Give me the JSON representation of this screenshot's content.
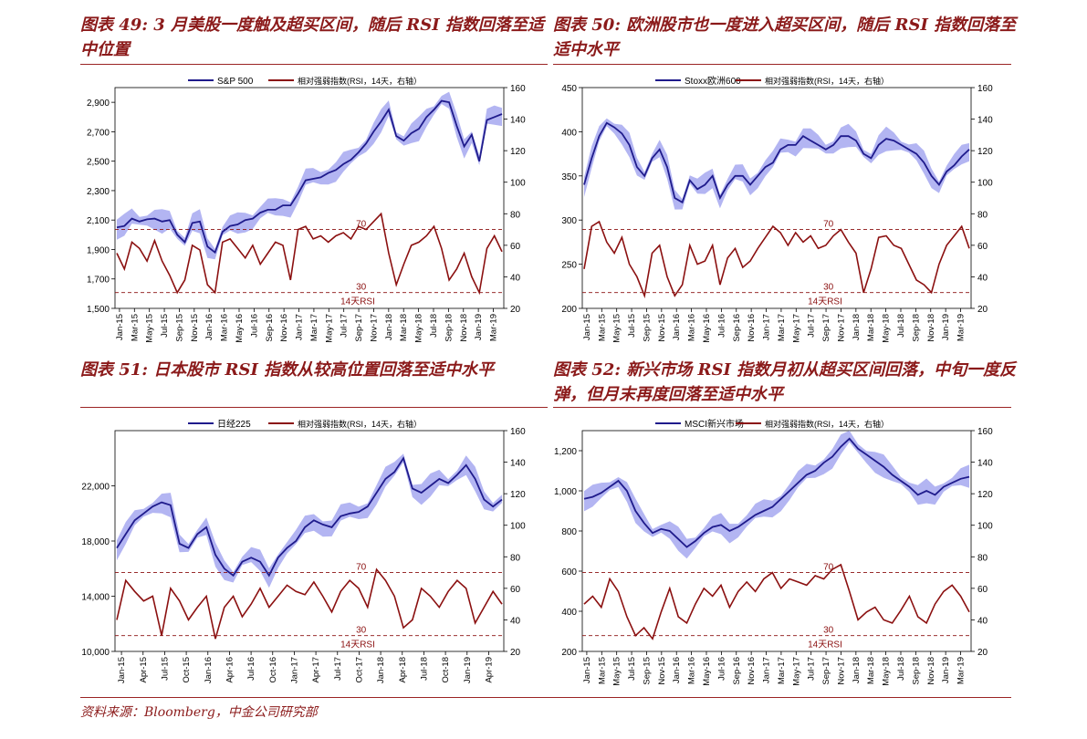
{
  "footer": {
    "source": "资料来源：Bloomberg，中金公司研究部"
  },
  "colors": {
    "index": "#1F1B8C",
    "rsi": "#8B1010",
    "band": "#B3B5F2",
    "accent": "#8B1A1A"
  },
  "charts": [
    {
      "title": "图表 49: 3 月美股一度触及超买区间，随后 RSI 指数回落至适中位置",
      "legend": {
        "index_label": "S&P 500",
        "rsi_label": "相对强弱指数(RSI，14天，右轴）"
      },
      "ref_label_high": "70",
      "ref_label_low": "30",
      "rsi_label": "14天RSI"
    },
    {
      "title": "图表 50: 欧洲股市也一度进入超买区间，随后 RSI 指数回落至适中水平",
      "legend": {
        "index_label": "Stoxx欧洲600",
        "rsi_label": "相对强弱指数(RSI，14天，右轴）"
      },
      "ref_label_high": "70",
      "ref_label_low": "30",
      "rsi_label": "14天RSI"
    },
    {
      "title": "图表 51: 日本股市 RSI 指数从较高位置回落至适中水平",
      "legend": {
        "index_label": "日经225",
        "rsi_label": "相对强弱指数(RSI，14天，右轴）"
      },
      "ref_label_high": "70",
      "ref_label_low": "30",
      "rsi_label": "14天RSI"
    },
    {
      "title": "图表 52: 新兴市场 RSI 指数月初从超买区间回落，中旬一度反弹，但月末再度回落至适中水平",
      "legend": {
        "index_label": "MSCI新兴市场",
        "rsi_label": "相对强弱指数(RSI，14天，右轴）"
      },
      "ref_label_high": "70",
      "ref_label_low": "30",
      "rsi_label": "14天RSI"
    }
  ],
  "chart_data": [
    {
      "type": "line",
      "x_ticks": [
        "Jan-15",
        "Mar-15",
        "May-15",
        "Jul-15",
        "Sep-15",
        "Nov-15",
        "Jan-16",
        "Mar-16",
        "May-16",
        "Jul-16",
        "Sep-16",
        "Nov-16",
        "Jan-17",
        "Mar-17",
        "May-17",
        "Jul-17",
        "Sep-17",
        "Nov-17",
        "Jan-18",
        "Mar-18",
        "May-18",
        "Jul-18",
        "Sep-18",
        "Nov-18",
        "Jan-19",
        "Mar-19"
      ],
      "y_left_ticks": [
        "1,500",
        "1,700",
        "1,900",
        "2,100",
        "2,300",
        "2,500",
        "2,700",
        "2,900"
      ],
      "y_left_range": [
        1500,
        3000
      ],
      "y_right_ticks": [
        "20",
        "40",
        "60",
        "80",
        "100",
        "120",
        "140",
        "160"
      ],
      "y_right_range": [
        20,
        160
      ],
      "rsi_ref_lines": [
        70,
        30
      ],
      "series": [
        {
          "name": "S&P 500",
          "axis": "left",
          "values": [
            2050,
            2060,
            2110,
            2090,
            2105,
            2110,
            2090,
            2100,
            2000,
            1950,
            2080,
            2090,
            1920,
            1880,
            2020,
            2060,
            2070,
            2100,
            2110,
            2150,
            2170,
            2170,
            2200,
            2200,
            2280,
            2370,
            2380,
            2390,
            2420,
            2440,
            2480,
            2510,
            2560,
            2620,
            2700,
            2770,
            2850,
            2670,
            2640,
            2690,
            2720,
            2800,
            2850,
            2910,
            2900,
            2740,
            2600,
            2680,
            2500,
            2780,
            2800,
            2820
          ]
        },
        {
          "name": "相对强弱指数(RSI，14天，右轴）",
          "axis": "right",
          "values": [
            55,
            45,
            62,
            58,
            50,
            63,
            50,
            41,
            30,
            38,
            60,
            57,
            35,
            30,
            62,
            64,
            58,
            52,
            60,
            48,
            55,
            62,
            60,
            38,
            70,
            72,
            64,
            66,
            62,
            66,
            68,
            64,
            72,
            70,
            75,
            80,
            55,
            35,
            48,
            60,
            62,
            66,
            72,
            58,
            38,
            45,
            55,
            40,
            30,
            58,
            66,
            56
          ]
        }
      ]
    },
    {
      "type": "line",
      "x_ticks": [
        "Jan-15",
        "Mar-15",
        "May-15",
        "Jul-15",
        "Sep-15",
        "Nov-15",
        "Jan-16",
        "Mar-16",
        "May-16",
        "Jul-16",
        "Sep-16",
        "Nov-16",
        "Jan-17",
        "Mar-17",
        "May-17",
        "Jul-17",
        "Sep-17",
        "Nov-17",
        "Jan-18",
        "Mar-18",
        "May-18",
        "Jul-18",
        "Sep-18",
        "Nov-18",
        "Jan-19",
        "Mar-19"
      ],
      "y_left_ticks": [
        "200",
        "250",
        "300",
        "350",
        "400",
        "450"
      ],
      "y_left_range": [
        200,
        450
      ],
      "y_right_ticks": [
        "20",
        "40",
        "60",
        "80",
        "100",
        "120",
        "140",
        "160"
      ],
      "y_right_range": [
        20,
        160
      ],
      "rsi_ref_lines": [
        70,
        30
      ],
      "series": [
        {
          "name": "Stoxx欧洲600",
          "axis": "left",
          "values": [
            340,
            370,
            395,
            410,
            405,
            398,
            385,
            360,
            350,
            370,
            380,
            360,
            325,
            320,
            345,
            335,
            340,
            350,
            325,
            340,
            350,
            350,
            340,
            350,
            360,
            365,
            380,
            385,
            385,
            395,
            390,
            385,
            380,
            385,
            395,
            395,
            390,
            375,
            370,
            385,
            392,
            390,
            385,
            380,
            375,
            365,
            350,
            340,
            355,
            362,
            372,
            380
          ]
        },
        {
          "name": "相对强弱指数(RSI，14天，右轴）",
          "axis": "right",
          "values": [
            45,
            72,
            75,
            62,
            55,
            65,
            48,
            40,
            28,
            55,
            60,
            40,
            28,
            35,
            60,
            48,
            50,
            60,
            35,
            52,
            58,
            46,
            50,
            58,
            65,
            72,
            68,
            60,
            68,
            62,
            66,
            58,
            60,
            66,
            70,
            62,
            55,
            30,
            45,
            65,
            66,
            60,
            58,
            48,
            38,
            35,
            30,
            48,
            60,
            66,
            72,
            58
          ]
        }
      ]
    },
    {
      "type": "line",
      "x_ticks": [
        "Jan-15",
        "Apr-15",
        "Jul-15",
        "Oct-15",
        "Jan-16",
        "Apr-16",
        "Jul-16",
        "Oct-16",
        "Jan-17",
        "Apr-17",
        "Jul-17",
        "Oct-17",
        "Jan-18",
        "Apr-18",
        "Jul-18",
        "Oct-18",
        "Jan-19",
        "Apr-19"
      ],
      "y_left_ticks": [
        "10,000",
        "14,000",
        "18,000",
        "22,000"
      ],
      "y_left_range": [
        10000,
        26000
      ],
      "y_right_ticks": [
        "20",
        "40",
        "60",
        "80",
        "100",
        "120",
        "140",
        "160"
      ],
      "y_right_range": [
        20,
        160
      ],
      "rsi_ref_lines": [
        70,
        30
      ],
      "series": [
        {
          "name": "日经225",
          "axis": "left",
          "values": [
            17500,
            18500,
            19500,
            20000,
            20500,
            20800,
            20600,
            17800,
            17500,
            18500,
            19000,
            17000,
            16000,
            15500,
            16500,
            16800,
            16500,
            15500,
            16800,
            17500,
            18000,
            19000,
            19500,
            19200,
            19000,
            19800,
            20000,
            20100,
            20500,
            21500,
            22500,
            23000,
            24000,
            21800,
            21500,
            22000,
            22500,
            22200,
            22800,
            23500,
            22500,
            21000,
            20500,
            21000
          ]
        },
        {
          "name": "相对强弱指数(RSI，14天，右轴）",
          "axis": "right",
          "values": [
            40,
            65,
            58,
            52,
            55,
            30,
            60,
            52,
            40,
            48,
            55,
            28,
            48,
            55,
            42,
            50,
            60,
            48,
            55,
            62,
            58,
            56,
            64,
            55,
            45,
            58,
            65,
            60,
            48,
            72,
            65,
            55,
            35,
            40,
            60,
            55,
            48,
            58,
            65,
            60,
            38,
            48,
            58,
            50
          ]
        }
      ]
    },
    {
      "type": "line",
      "x_ticks": [
        "Jan-15",
        "Mar-15",
        "May-15",
        "Jul-15",
        "Sep-15",
        "Nov-15",
        "Jan-16",
        "Mar-16",
        "May-16",
        "Jul-16",
        "Sep-16",
        "Nov-16",
        "Jan-17",
        "Mar-17",
        "May-17",
        "Jul-17",
        "Sep-17",
        "Nov-17",
        "Jan-18",
        "Mar-18",
        "May-18",
        "Jul-18",
        "Sep-18",
        "Nov-18",
        "Jan-19",
        "Mar-19"
      ],
      "y_left_ticks": [
        "200",
        "400",
        "600",
        "800",
        "1,000",
        "1,200"
      ],
      "y_left_range": [
        200,
        1300
      ],
      "y_right_ticks": [
        "20",
        "40",
        "60",
        "80",
        "100",
        "120",
        "140",
        "160"
      ],
      "y_right_range": [
        20,
        160
      ],
      "rsi_ref_lines": [
        70,
        30
      ],
      "series": [
        {
          "name": "MSCI新兴市场",
          "axis": "left",
          "values": [
            960,
            970,
            990,
            1020,
            1050,
            1000,
            900,
            840,
            790,
            810,
            800,
            760,
            720,
            750,
            790,
            820,
            830,
            800,
            820,
            850,
            880,
            900,
            920,
            960,
            1000,
            1040,
            1080,
            1100,
            1140,
            1170,
            1220,
            1260,
            1210,
            1180,
            1150,
            1120,
            1080,
            1050,
            1020,
            980,
            1000,
            980,
            1020,
            1040,
            1060,
            1070
          ]
        },
        {
          "name": "相对强弱指数(RSI，14天，右轴）",
          "axis": "right",
          "values": [
            50,
            55,
            48,
            66,
            58,
            42,
            30,
            35,
            28,
            45,
            60,
            42,
            38,
            50,
            60,
            55,
            62,
            48,
            58,
            64,
            58,
            66,
            70,
            60,
            66,
            64,
            62,
            68,
            66,
            72,
            75,
            58,
            40,
            45,
            48,
            40,
            38,
            46,
            55,
            42,
            38,
            50,
            58,
            62,
            55,
            45
          ]
        }
      ]
    }
  ]
}
